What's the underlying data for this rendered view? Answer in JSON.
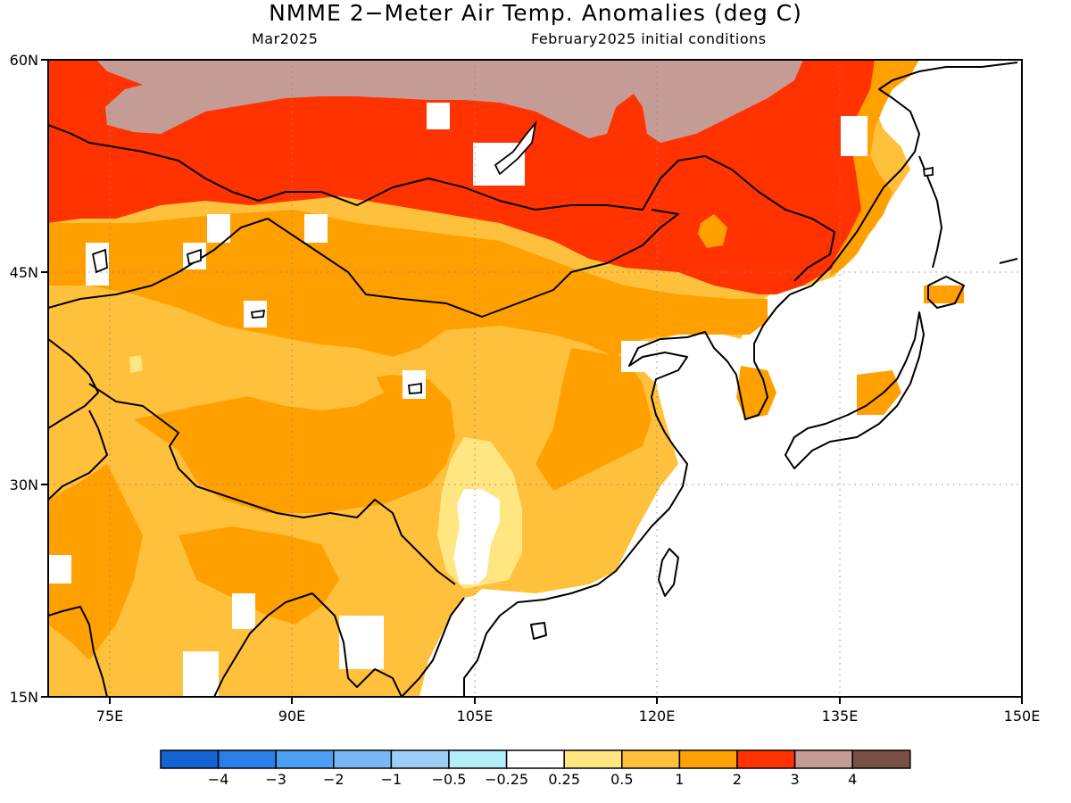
{
  "header": {
    "title": "NMME 2−Meter Air Temp. Anomalies (deg C)",
    "month": "Mar2025",
    "init": "February2025 initial conditions"
  },
  "axes": {
    "lat_labels": [
      "60N",
      "45N",
      "30N",
      "15N"
    ],
    "lon_labels": [
      "75E",
      "90E",
      "105E",
      "120E",
      "135E",
      "150E"
    ],
    "lat_range": [
      15,
      60
    ],
    "lon_range": [
      70,
      150
    ]
  },
  "legend": {
    "colors": [
      "#1463d3",
      "#2a7fe8",
      "#4b9ff5",
      "#78b8f7",
      "#9ccff7",
      "#b4eefa",
      "#ffffff",
      "#ffe680",
      "#ffc03c",
      "#ffa000",
      "#ff3200",
      "#c59c95",
      "#7a5044"
    ],
    "labels": [
      "−4",
      "−3",
      "−2",
      "−1",
      "−0.5",
      "−0.25",
      "0.25",
      "0.5",
      "1",
      "2",
      "3",
      "4"
    ]
  }
}
